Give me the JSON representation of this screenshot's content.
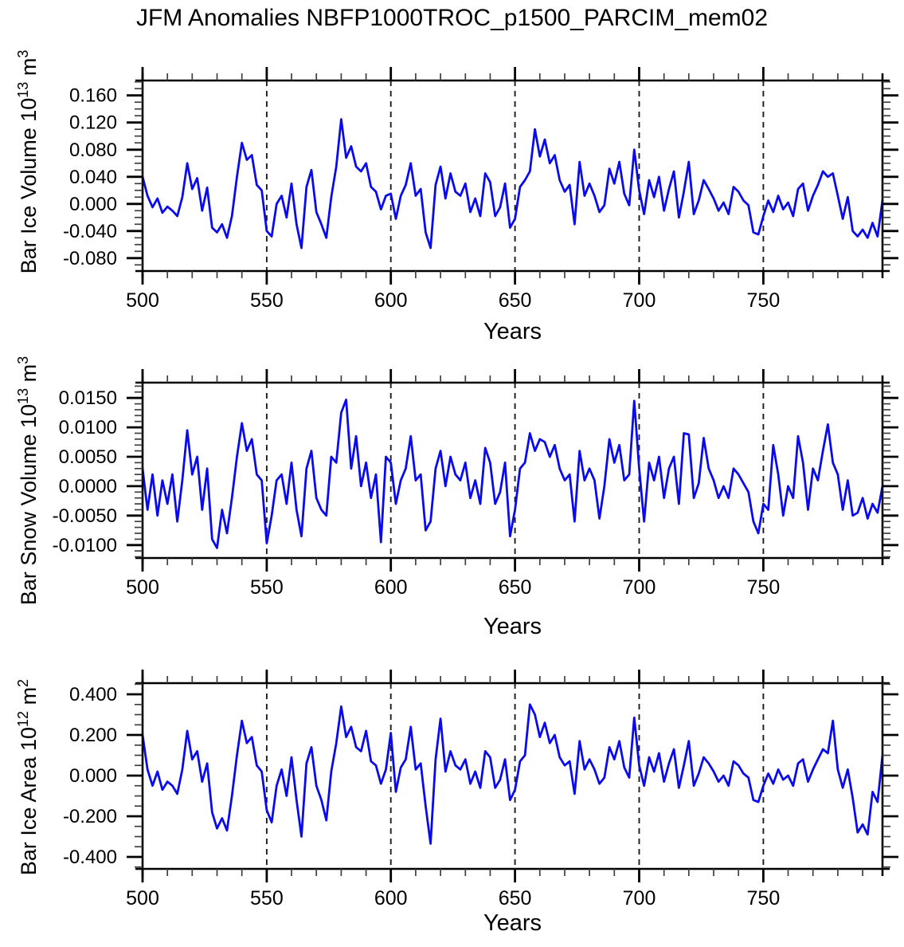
{
  "chart_data": {
    "type": "line",
    "title": "JFM Anomalies NBFP1000TROC_p1500_PARCIM_mem02",
    "x_label": "Years",
    "line_color": "#0a0aee",
    "grid": "dashed-vertical",
    "legend": "none",
    "x_range": [
      500,
      798
    ],
    "x_ticks_major": [
      500,
      550,
      600,
      650,
      700,
      750
    ],
    "x_tick_labels": [
      "500",
      "550",
      "600",
      "650",
      "700",
      "750"
    ],
    "x_minor_step": 10,
    "grid_x_dashed": [
      550,
      600,
      650,
      700,
      750
    ],
    "x": [
      500,
      502,
      504,
      506,
      508,
      510,
      512,
      514,
      516,
      518,
      520,
      522,
      524,
      526,
      528,
      530,
      532,
      534,
      536,
      538,
      540,
      542,
      544,
      546,
      548,
      550,
      552,
      554,
      556,
      558,
      560,
      562,
      564,
      566,
      568,
      570,
      572,
      574,
      576,
      578,
      580,
      582,
      584,
      586,
      588,
      590,
      592,
      594,
      596,
      598,
      600,
      602,
      604,
      606,
      608,
      610,
      612,
      614,
      616,
      618,
      620,
      622,
      624,
      626,
      628,
      630,
      632,
      634,
      636,
      638,
      640,
      642,
      644,
      646,
      648,
      650,
      652,
      654,
      656,
      658,
      660,
      662,
      664,
      666,
      668,
      670,
      672,
      674,
      676,
      678,
      680,
      682,
      684,
      686,
      688,
      690,
      692,
      694,
      696,
      698,
      700,
      702,
      704,
      706,
      708,
      710,
      712,
      714,
      716,
      718,
      720,
      722,
      724,
      726,
      728,
      730,
      732,
      734,
      736,
      738,
      740,
      742,
      744,
      746,
      748,
      750,
      752,
      754,
      756,
      758,
      760,
      762,
      764,
      766,
      768,
      770,
      772,
      774,
      776,
      778,
      780,
      782,
      784,
      786,
      788,
      790,
      792,
      794,
      796,
      798
    ],
    "panels": [
      {
        "name": "ice-volume",
        "y_label": {
          "base": "Bar Ice Volume 10",
          "exp": "13",
          "unit": " m",
          "unit_exp": "3"
        },
        "y_ticks": [
          0.16,
          0.12,
          0.08,
          0.04,
          0.0,
          -0.04,
          -0.08
        ],
        "y_tick_labels": [
          "0.160",
          "0.120",
          "0.080",
          "0.040",
          "0.000",
          "-0.040",
          "-0.080"
        ],
        "y_minor_step": 0.01,
        "y_range": [
          -0.099,
          0.182
        ],
        "values": [
          0.04,
          0.012,
          -0.005,
          0.008,
          -0.013,
          -0.004,
          -0.01,
          -0.018,
          0.01,
          0.06,
          0.022,
          0.038,
          -0.01,
          0.024,
          -0.035,
          -0.042,
          -0.03,
          -0.05,
          -0.018,
          0.04,
          0.09,
          0.065,
          0.072,
          0.028,
          0.02,
          -0.04,
          -0.048,
          0.0,
          0.012,
          -0.02,
          0.03,
          -0.03,
          -0.065,
          0.025,
          0.05,
          -0.012,
          -0.03,
          -0.05,
          0.01,
          0.055,
          0.125,
          0.068,
          0.085,
          0.055,
          0.048,
          0.06,
          0.025,
          0.018,
          -0.008,
          0.012,
          0.015,
          -0.022,
          0.012,
          0.028,
          0.06,
          0.012,
          0.022,
          -0.042,
          -0.065,
          0.028,
          0.055,
          0.008,
          0.045,
          0.018,
          0.012,
          0.03,
          -0.012,
          0.008,
          -0.018,
          0.045,
          0.032,
          -0.018,
          -0.005,
          0.03,
          -0.035,
          -0.022,
          0.025,
          0.035,
          0.048,
          0.11,
          0.07,
          0.095,
          0.06,
          0.072,
          0.035,
          0.018,
          0.028,
          -0.03,
          0.062,
          0.012,
          0.03,
          0.012,
          -0.012,
          -0.002,
          0.052,
          0.03,
          0.062,
          0.015,
          -0.002,
          0.08,
          0.02,
          -0.015,
          0.035,
          0.01,
          0.04,
          -0.01,
          0.022,
          0.048,
          -0.02,
          0.018,
          0.062,
          -0.015,
          0.005,
          0.035,
          0.022,
          0.008,
          -0.01,
          0.002,
          -0.015,
          0.025,
          0.018,
          0.005,
          -0.002,
          -0.042,
          -0.045,
          -0.018,
          0.005,
          -0.012,
          0.012,
          -0.008,
          0.002,
          -0.018,
          0.022,
          0.03,
          -0.01,
          0.012,
          0.028,
          0.048,
          0.04,
          0.045,
          0.012,
          -0.022,
          0.01,
          -0.04,
          -0.048,
          -0.038,
          -0.05,
          -0.028,
          -0.048,
          0.005
        ]
      },
      {
        "name": "snow-volume",
        "y_label": {
          "base": "Bar Snow Volume 10",
          "exp": "13",
          "unit": " m",
          "unit_exp": "3"
        },
        "y_ticks": [
          0.015,
          0.01,
          0.005,
          0.0,
          -0.005,
          -0.01
        ],
        "y_tick_labels": [
          "0.0150",
          "0.0100",
          "0.0050",
          "0.0000",
          "-0.0050",
          "-0.0100"
        ],
        "y_minor_step": 0.001,
        "y_range": [
          -0.0122,
          0.0176
        ],
        "values": [
          0.003,
          -0.004,
          0.002,
          -0.005,
          0.001,
          -0.003,
          0.002,
          -0.006,
          0.001,
          0.0095,
          0.002,
          0.005,
          -0.004,
          0.003,
          -0.009,
          -0.0105,
          -0.004,
          -0.008,
          -0.002,
          0.005,
          0.0107,
          0.006,
          0.008,
          0.002,
          0.001,
          -0.0097,
          -0.005,
          0.001,
          0.002,
          -0.003,
          0.004,
          -0.004,
          -0.0085,
          0.003,
          0.006,
          -0.002,
          -0.004,
          -0.005,
          0.005,
          0.004,
          0.0125,
          0.0147,
          0.003,
          0.0085,
          0.0,
          0.004,
          -0.002,
          0.002,
          -0.0095,
          0.005,
          0.004,
          -0.003,
          0.001,
          0.003,
          0.0085,
          0.001,
          0.002,
          -0.0075,
          -0.006,
          0.003,
          0.006,
          0.0,
          0.005,
          0.002,
          0.001,
          0.004,
          -0.002,
          0.001,
          -0.003,
          0.0065,
          0.004,
          -0.003,
          -0.001,
          0.004,
          -0.0085,
          -0.004,
          0.003,
          0.004,
          0.009,
          0.006,
          0.008,
          0.0075,
          0.005,
          0.007,
          0.003,
          0.001,
          0.002,
          -0.006,
          0.006,
          0.001,
          0.003,
          0.001,
          -0.0055,
          0.0,
          0.008,
          0.004,
          0.007,
          0.001,
          0.002,
          0.0145,
          0.003,
          -0.006,
          0.004,
          0.001,
          0.005,
          -0.002,
          0.003,
          0.005,
          -0.003,
          0.009,
          0.0088,
          -0.002,
          0.0005,
          0.0082,
          0.003,
          0.001,
          -0.002,
          0.0,
          -0.002,
          0.003,
          0.002,
          0.0005,
          -0.001,
          -0.006,
          -0.008,
          -0.003,
          -0.004,
          0.007,
          0.002,
          -0.005,
          0.0,
          -0.002,
          0.0085,
          0.004,
          -0.004,
          0.003,
          0.001,
          0.006,
          0.0105,
          0.004,
          0.002,
          -0.004,
          0.001,
          -0.005,
          -0.0045,
          -0.002,
          -0.0055,
          -0.003,
          -0.0045,
          0.0
        ]
      },
      {
        "name": "ice-area",
        "y_label": {
          "base": "Bar Ice Area 10",
          "exp": "12",
          "unit": " m",
          "unit_exp": "2"
        },
        "y_ticks": [
          0.4,
          0.2,
          0.0,
          -0.2,
          -0.4
        ],
        "y_tick_labels": [
          "0.400",
          "0.200",
          "0.000",
          "-0.200",
          "-0.400"
        ],
        "y_minor_step": 0.05,
        "y_range": [
          -0.459,
          0.455
        ],
        "values": [
          0.2,
          0.03,
          -0.05,
          0.02,
          -0.07,
          -0.03,
          -0.05,
          -0.09,
          0.03,
          0.22,
          0.08,
          0.12,
          -0.03,
          0.06,
          -0.18,
          -0.26,
          -0.21,
          -0.27,
          -0.1,
          0.1,
          0.27,
          0.16,
          0.19,
          0.05,
          0.02,
          -0.17,
          -0.23,
          -0.05,
          0.03,
          -0.1,
          0.09,
          -0.12,
          -0.3,
          0.06,
          0.14,
          -0.05,
          -0.12,
          -0.22,
          0.02,
          0.16,
          0.34,
          0.19,
          0.24,
          0.14,
          0.12,
          0.22,
          0.07,
          0.05,
          -0.04,
          0.03,
          0.21,
          -0.08,
          0.04,
          0.08,
          0.24,
          0.03,
          0.06,
          -0.15,
          -0.335,
          0.08,
          0.28,
          0.02,
          0.12,
          0.05,
          0.03,
          0.08,
          -0.04,
          0.02,
          -0.06,
          0.12,
          0.09,
          -0.06,
          -0.02,
          0.08,
          -0.12,
          -0.07,
          0.07,
          0.1,
          0.35,
          0.3,
          0.19,
          0.26,
          0.16,
          0.2,
          0.09,
          0.05,
          0.07,
          -0.09,
          0.17,
          0.03,
          0.08,
          0.03,
          -0.04,
          -0.01,
          0.14,
          0.08,
          0.17,
          0.04,
          -0.01,
          0.285,
          0.05,
          -0.05,
          0.09,
          0.02,
          0.11,
          -0.03,
          0.06,
          0.13,
          -0.06,
          0.05,
          0.17,
          -0.05,
          0.01,
          0.09,
          0.06,
          0.02,
          -0.03,
          0.0,
          -0.05,
          0.07,
          0.05,
          0.01,
          -0.01,
          -0.12,
          -0.13,
          -0.05,
          0.01,
          -0.04,
          0.03,
          -0.02,
          0.0,
          -0.05,
          0.06,
          0.08,
          -0.03,
          0.03,
          0.08,
          0.13,
          0.11,
          0.27,
          0.03,
          -0.06,
          0.03,
          -0.11,
          -0.28,
          -0.24,
          -0.29,
          -0.08,
          -0.13,
          0.1
        ]
      }
    ]
  }
}
